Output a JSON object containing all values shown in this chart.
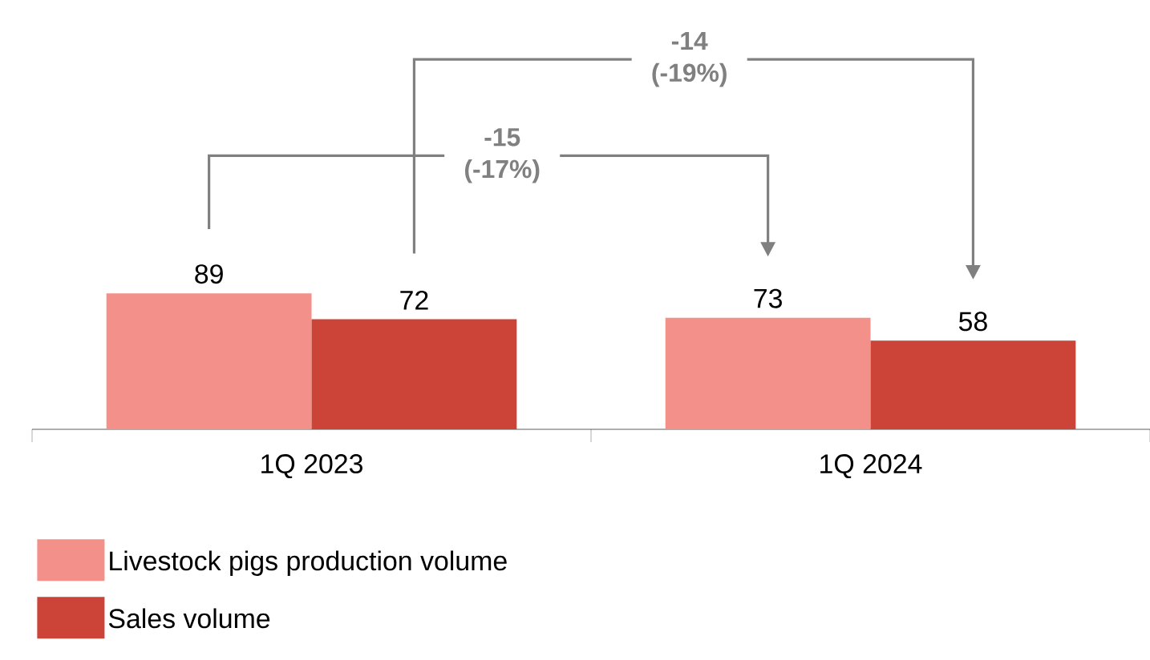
{
  "chart_data": {
    "type": "bar",
    "categories": [
      "1Q 2023",
      "1Q 2024"
    ],
    "series": [
      {
        "name": "Livestock pigs production volume",
        "color": "#f4908a",
        "values": [
          89,
          73
        ]
      },
      {
        "name": "Sales volume",
        "color": "#cc4438",
        "values": [
          72,
          58
        ]
      }
    ],
    "data_labels": true,
    "legend": "bottom",
    "grid": false,
    "annotations": [
      "-15 (-17%)",
      "-14 (-19%)"
    ]
  }
}
